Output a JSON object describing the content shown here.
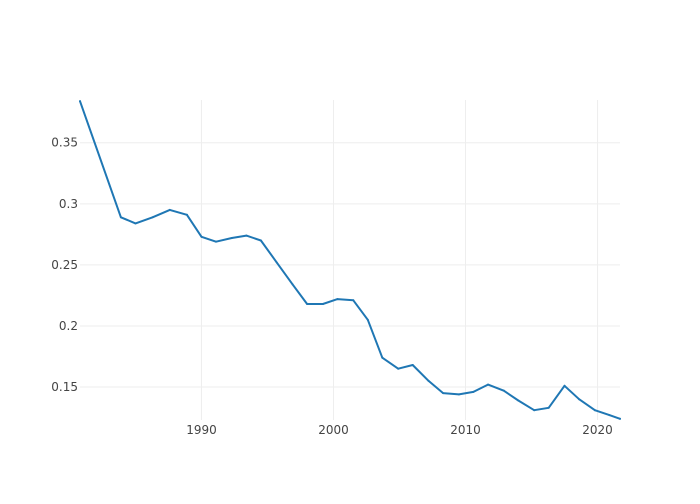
{
  "chart_data": {
    "type": "line",
    "title": "",
    "xlabel": "",
    "ylabel": "",
    "xlim": [
      1980.8,
      2021.7
    ],
    "ylim": [
      0.123,
      0.385
    ],
    "x_ticks": [
      1990,
      2000,
      2010,
      2020
    ],
    "x_tick_labels": [
      "1990",
      "2000",
      "2010",
      "2020"
    ],
    "y_ticks": [
      0.15,
      0.2,
      0.25,
      0.3,
      0.35
    ],
    "y_tick_labels": [
      "0.15",
      "0.2",
      "0.25",
      "0.3",
      "0.35"
    ],
    "grid": true,
    "series": [
      {
        "color": "#1f77b4",
        "x": [
          1980.8,
          1983.9,
          1985.0,
          1986.3,
          1987.6,
          1988.9,
          1990.0,
          1991.1,
          1992.3,
          1993.4,
          1994.5,
          1995.7,
          1996.9,
          1998.0,
          1999.2,
          2000.3,
          2001.5,
          2002.6,
          2003.7,
          2004.9,
          2006.0,
          2007.2,
          2008.3,
          2009.5,
          2010.6,
          2011.7,
          2012.9,
          2014.0,
          2015.2,
          2016.3,
          2017.5,
          2018.6,
          2019.8,
          2020.9,
          2021.7
        ],
        "y": [
          0.384,
          0.289,
          0.284,
          0.289,
          0.295,
          0.291,
          0.273,
          0.269,
          0.272,
          0.274,
          0.27,
          0.252,
          0.234,
          0.218,
          0.218,
          0.222,
          0.221,
          0.205,
          0.174,
          0.165,
          0.168,
          0.155,
          0.145,
          0.144,
          0.146,
          0.152,
          0.147,
          0.139,
          0.131,
          0.133,
          0.151,
          0.14,
          0.131,
          0.127,
          0.124
        ]
      }
    ]
  }
}
